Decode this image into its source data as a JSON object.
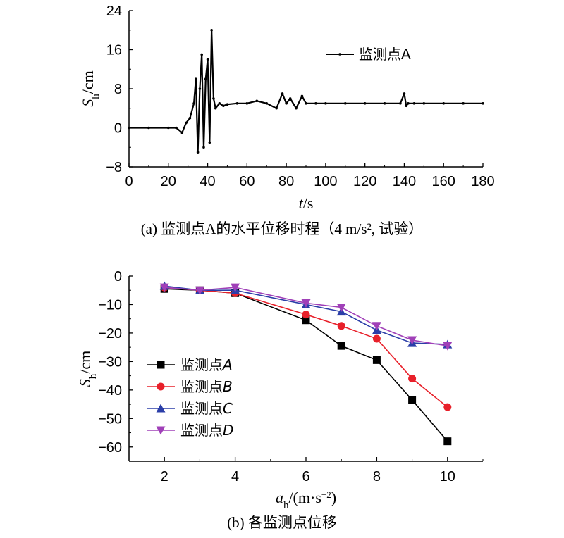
{
  "chart_data": [
    {
      "type": "line",
      "caption": "(a) 监测点A的水平位移时程（4 m/s², 试验）",
      "xlabel": "t/s",
      "ylabel": "Sh/cm",
      "xlim": [
        0,
        180
      ],
      "ylim": [
        -8,
        24
      ],
      "xticks": [
        0,
        20,
        40,
        60,
        80,
        100,
        120,
        140,
        160,
        180
      ],
      "yticks": [
        -8,
        0,
        8,
        16,
        24
      ],
      "legend_position": "top-right",
      "series": [
        {
          "name": "监测点A",
          "color": "#000000",
          "marker": "dot",
          "x": [
            0,
            10,
            20,
            24,
            27,
            29,
            31,
            33,
            34,
            35,
            36,
            37,
            38,
            39,
            40,
            41,
            42,
            43,
            44,
            46,
            48,
            50,
            55,
            60,
            65,
            70,
            75,
            78,
            80,
            82,
            85,
            88,
            90,
            95,
            100,
            110,
            120,
            130,
            138,
            140,
            141,
            142,
            145,
            150,
            160,
            170,
            180
          ],
          "y": [
            0,
            0,
            0,
            0,
            -1,
            1,
            2,
            5,
            10,
            -5,
            8,
            15,
            -4,
            10,
            14,
            -3,
            20,
            6,
            4,
            5,
            4.5,
            4.8,
            5,
            5,
            5.5,
            5,
            4,
            7,
            5,
            6,
            4,
            6.5,
            5,
            5,
            5,
            5,
            5,
            5,
            5,
            7,
            4.5,
            5,
            5,
            5,
            5,
            5,
            5
          ]
        }
      ]
    },
    {
      "type": "line",
      "caption": "(b) 各监测点位移",
      "xlabel": "ah/(m·s⁻²)",
      "ylabel": "Sh/cm",
      "xlim": [
        1.0,
        11.0
      ],
      "ylim": [
        -65,
        0
      ],
      "xticks": [
        2,
        4,
        6,
        8,
        10
      ],
      "yticks": [
        0,
        -10,
        -20,
        -30,
        -40,
        -50,
        -60
      ],
      "legend_position": "lower-left",
      "x": [
        2,
        3,
        4,
        6,
        7,
        8,
        9,
        10
      ],
      "series": [
        {
          "name": "监测点A",
          "color": "#000000",
          "marker": "square",
          "values": [
            -4.5,
            -5,
            -6,
            -15.5,
            -24.5,
            -29.5,
            -43.5,
            -58
          ]
        },
        {
          "name": "监测点B",
          "color": "#e8202a",
          "marker": "circle",
          "values": [
            -4,
            -5,
            -6,
            -13.5,
            -17.5,
            -22,
            -36,
            -46
          ]
        },
        {
          "name": "监测点C",
          "color": "#2b3ea8",
          "marker": "triangle-up",
          "values": [
            -3.5,
            -5,
            -5,
            -10,
            -12.5,
            -19,
            -23.5,
            -24
          ]
        },
        {
          "name": "监测点D",
          "color": "#a040b8",
          "marker": "triangle-down",
          "values": [
            -4,
            -5,
            -4,
            -9.5,
            -11,
            -17.5,
            -22.5,
            -24.5
          ]
        }
      ]
    }
  ]
}
